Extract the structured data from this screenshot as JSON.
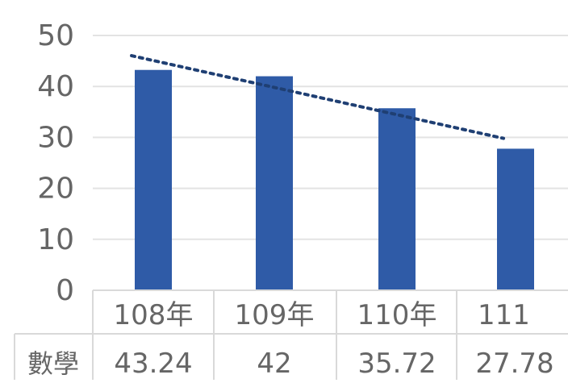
{
  "chart_data": {
    "type": "bar",
    "title": "",
    "xlabel": "",
    "ylabel": "",
    "categories": [
      "108年",
      "109年",
      "110年",
      "111"
    ],
    "series": [
      {
        "name": "數學",
        "values": [
          43.24,
          42,
          35.72,
          27.78
        ]
      }
    ],
    "ylim": [
      0,
      50
    ],
    "y_ticks": [
      0,
      10,
      20,
      30,
      40,
      50
    ],
    "grid": true,
    "trendline": {
      "type": "linear",
      "style": "dotted",
      "series": "數學"
    },
    "data_table": true,
    "legend": "none",
    "colors": {
      "bar": "#2f5ba7",
      "trendline": "#1f3f73",
      "grid": "#e3e3e3",
      "axis_text": "#666666",
      "table_border": "#d9d9d9"
    }
  }
}
